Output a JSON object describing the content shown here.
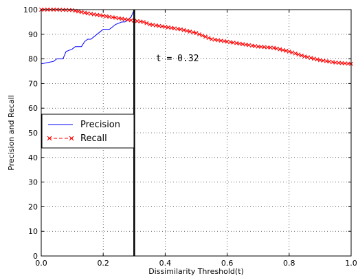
{
  "chart_data": {
    "type": "line",
    "xlabel": "Dissimilarity Threshold(t)",
    "ylabel": "Precision and Recall",
    "xlim": [
      0,
      1
    ],
    "ylim": [
      0,
      100
    ],
    "xticks": [
      "0.0",
      "0.2",
      "0.4",
      "0.6",
      "0.8",
      "1.0"
    ],
    "yticks": [
      "0",
      "10",
      "20",
      "30",
      "40",
      "50",
      "60",
      "70",
      "80",
      "90",
      "100"
    ],
    "grid": true,
    "legend_position": "left-middle",
    "annotation": {
      "text": "t = 0.32",
      "x": 0.37,
      "y": 79
    },
    "threshold_line": {
      "x": 0.3
    },
    "series": [
      {
        "name": "Precision",
        "color": "#0000ff",
        "marker": "none",
        "points": [
          [
            0.0,
            78
          ],
          [
            0.02,
            78.5
          ],
          [
            0.04,
            79
          ],
          [
            0.05,
            80
          ],
          [
            0.07,
            80
          ],
          [
            0.08,
            83
          ],
          [
            0.1,
            84
          ],
          [
            0.11,
            85
          ],
          [
            0.13,
            85
          ],
          [
            0.14,
            87
          ],
          [
            0.15,
            88
          ],
          [
            0.16,
            88
          ],
          [
            0.18,
            90
          ],
          [
            0.19,
            91
          ],
          [
            0.2,
            92
          ],
          [
            0.22,
            92
          ],
          [
            0.23,
            93
          ],
          [
            0.24,
            94
          ],
          [
            0.26,
            95
          ],
          [
            0.27,
            95
          ],
          [
            0.28,
            96
          ],
          [
            0.29,
            97
          ],
          [
            0.3,
            100
          ],
          [
            0.35,
            100
          ],
          [
            0.4,
            100
          ],
          [
            0.5,
            100
          ],
          [
            0.6,
            100
          ],
          [
            0.7,
            100
          ],
          [
            0.8,
            100
          ],
          [
            0.9,
            100
          ],
          [
            1.0,
            100
          ]
        ]
      },
      {
        "name": "Recall",
        "color": "#ff0000",
        "marker": "x",
        "points": [
          [
            0.0,
            100
          ],
          [
            0.05,
            100
          ],
          [
            0.1,
            99.8
          ],
          [
            0.13,
            99
          ],
          [
            0.15,
            98.5
          ],
          [
            0.2,
            97.5
          ],
          [
            0.25,
            96.5
          ],
          [
            0.3,
            95.5
          ],
          [
            0.33,
            95
          ],
          [
            0.35,
            94
          ],
          [
            0.4,
            93
          ],
          [
            0.45,
            92
          ],
          [
            0.5,
            90.5
          ],
          [
            0.55,
            88
          ],
          [
            0.6,
            87
          ],
          [
            0.65,
            86
          ],
          [
            0.7,
            85
          ],
          [
            0.75,
            84.5
          ],
          [
            0.8,
            83
          ],
          [
            0.85,
            81
          ],
          [
            0.9,
            79.5
          ],
          [
            0.95,
            78.5
          ],
          [
            1.0,
            78
          ]
        ]
      }
    ]
  }
}
